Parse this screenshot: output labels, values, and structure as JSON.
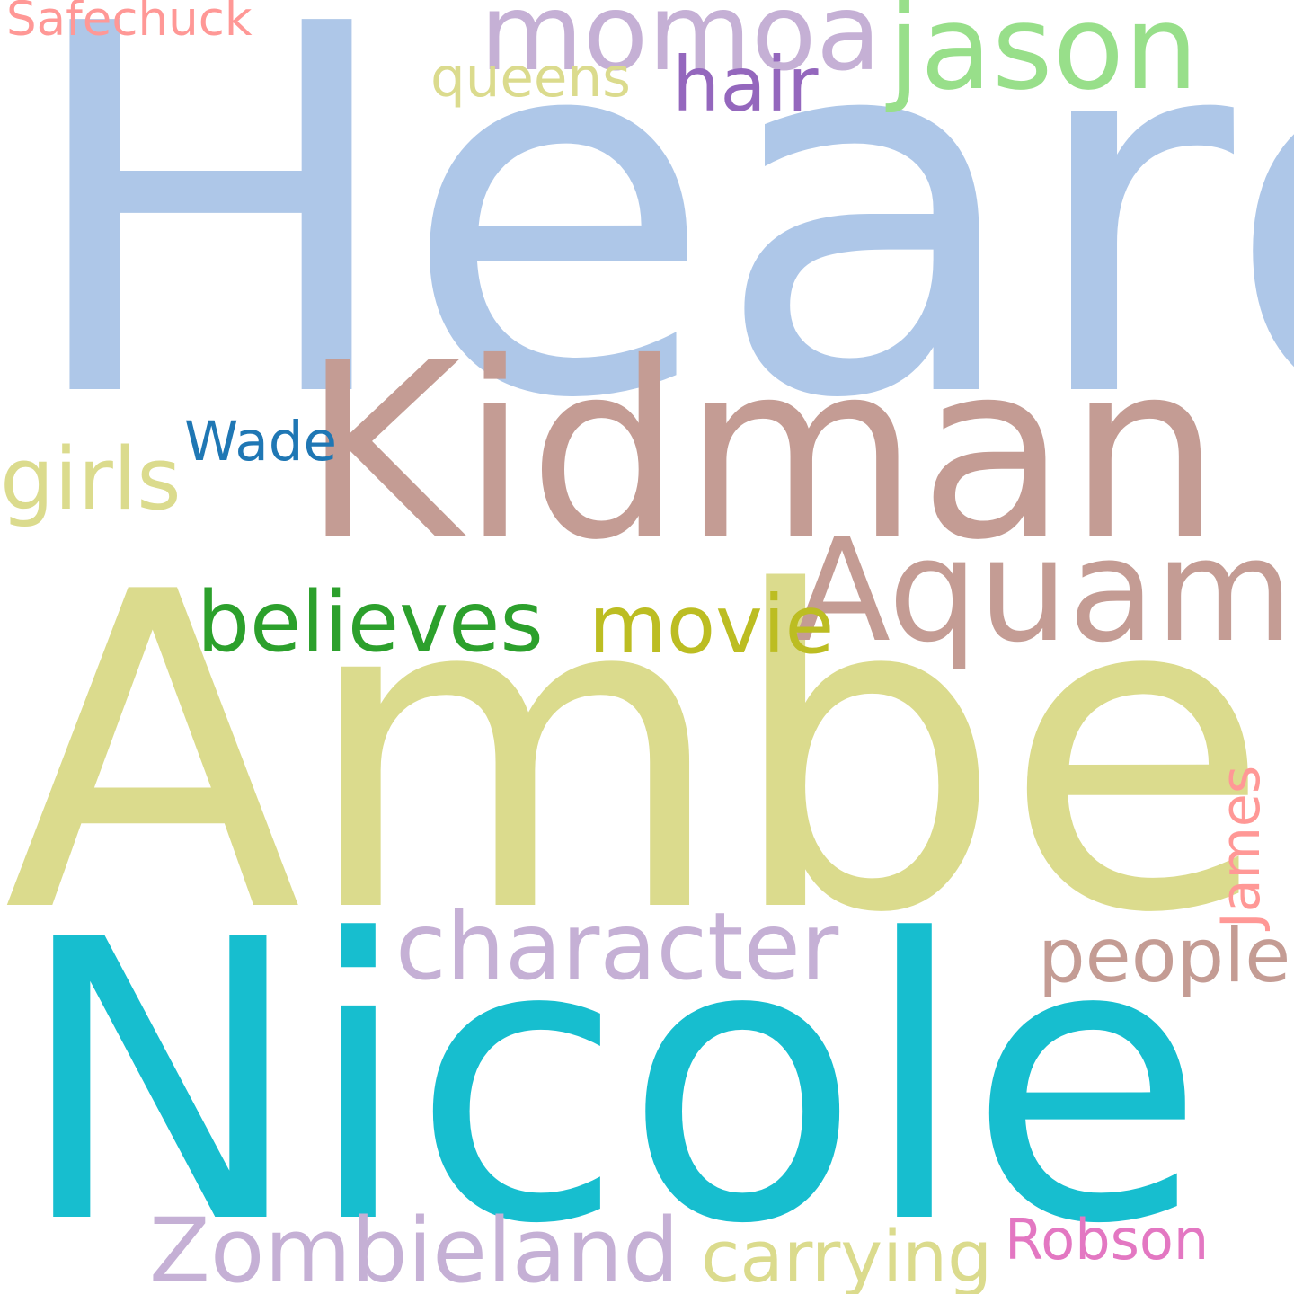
{
  "word_cloud": {
    "background": "#ffffff",
    "words": [
      {
        "id": "heard",
        "text": "Heard",
        "color": "#aec7e8"
      },
      {
        "id": "kidman",
        "text": "Kidman",
        "color": "#c49c94"
      },
      {
        "id": "amber",
        "text": "Amber",
        "color": "#dbdb8d"
      },
      {
        "id": "nicole",
        "text": "Nicole",
        "color": "#17becf"
      },
      {
        "id": "aquaman",
        "text": "Aquaman",
        "color": "#c49c94"
      },
      {
        "id": "momoa",
        "text": "momoa",
        "color": "#c5b0d5"
      },
      {
        "id": "jason",
        "text": "jason",
        "color": "#98df8a"
      },
      {
        "id": "hair",
        "text": "hair",
        "color": "#9467bd"
      },
      {
        "id": "queens",
        "text": "queens",
        "color": "#dbdb8d"
      },
      {
        "id": "safechuck",
        "text": "Safechuck",
        "color": "#ff9896"
      },
      {
        "id": "wade",
        "text": "Wade",
        "color": "#1f77b4"
      },
      {
        "id": "girls",
        "text": "girls",
        "color": "#dbdb8d"
      },
      {
        "id": "believes",
        "text": "believes",
        "color": "#2ca02c"
      },
      {
        "id": "movie",
        "text": "movie",
        "color": "#bcbd22"
      },
      {
        "id": "character",
        "text": "character",
        "color": "#c5b0d5"
      },
      {
        "id": "people",
        "text": "people",
        "color": "#c49c94"
      },
      {
        "id": "james",
        "text": "James",
        "color": "#ff9896",
        "orientation": "vertical"
      },
      {
        "id": "zombieland",
        "text": "Zombieland",
        "color": "#c5b0d5"
      },
      {
        "id": "carrying",
        "text": "carrying",
        "color": "#dbdb8d"
      },
      {
        "id": "robson",
        "text": "Robson",
        "color": "#e377c2"
      }
    ]
  }
}
